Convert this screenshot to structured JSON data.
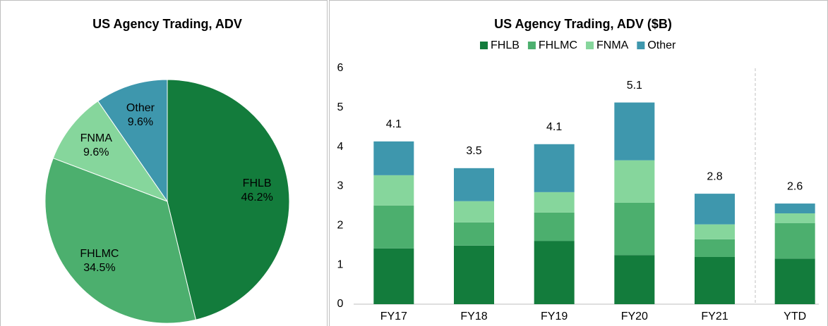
{
  "chart_data": [
    {
      "type": "pie",
      "title": "US Agency Trading, ADV",
      "categories": [
        "FHLB",
        "FHLMC",
        "FNMA",
        "Other"
      ],
      "values": [
        46.2,
        34.5,
        9.6,
        9.6
      ],
      "value_labels": [
        "46.2%",
        "34.5%",
        "9.6%",
        "9.6%"
      ],
      "colors": [
        "#137c3c",
        "#4caf6e",
        "#86d69c",
        "#3e97ad"
      ]
    },
    {
      "type": "stacked_bar",
      "title": "US Agency Trading, ADV ($B)",
      "categories": [
        "FY17",
        "FY18",
        "FY19",
        "FY20",
        "FY21",
        "YTD"
      ],
      "series": [
        {
          "name": "FHLB",
          "color": "#137c3c",
          "values": [
            1.42,
            1.49,
            1.61,
            1.25,
            1.2,
            1.16
          ]
        },
        {
          "name": "FHLMC",
          "color": "#4caf6e",
          "values": [
            1.09,
            0.59,
            0.72,
            1.33,
            0.45,
            0.9
          ]
        },
        {
          "name": "FNMA",
          "color": "#86d69c",
          "values": [
            0.77,
            0.54,
            0.52,
            1.08,
            0.38,
            0.25
          ]
        },
        {
          "name": "Other",
          "color": "#3e97ad",
          "values": [
            0.86,
            0.84,
            1.22,
            1.47,
            0.78,
            0.25
          ]
        }
      ],
      "totals": [
        4.1,
        3.5,
        4.1,
        5.1,
        2.8,
        2.6
      ],
      "ylim": [
        0,
        6
      ],
      "yticks": [
        0,
        1,
        2,
        3,
        4,
        5,
        6
      ],
      "grid": false,
      "legend": "top"
    }
  ]
}
